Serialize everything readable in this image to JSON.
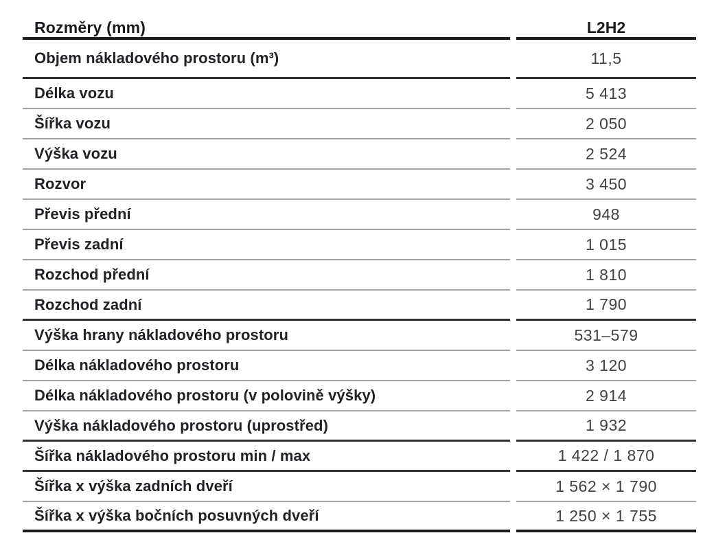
{
  "table": {
    "title": "Rozměry (mm)",
    "column_header": "L2H2",
    "rows": [
      {
        "label": "Objem nákladového prostoru (m³)",
        "value": "11,5",
        "sep": "dark",
        "tall": true
      },
      {
        "label": "Délka vozu",
        "value": "5 413",
        "sep": "thin",
        "tall": false
      },
      {
        "label": "Šířka vozu",
        "value": "2 050",
        "sep": "thin",
        "tall": false
      },
      {
        "label": "Výška vozu",
        "value": "2 524",
        "sep": "thin",
        "tall": false
      },
      {
        "label": "Rozvor",
        "value": "3 450",
        "sep": "thin",
        "tall": false
      },
      {
        "label": "Převis přední",
        "value": "948",
        "sep": "thin",
        "tall": false
      },
      {
        "label": "Převis zadní",
        "value": "1 015",
        "sep": "thin",
        "tall": false
      },
      {
        "label": "Rozchod přední",
        "value": "1 810",
        "sep": "thin",
        "tall": false
      },
      {
        "label": "Rozchod zadní",
        "value": "1 790",
        "sep": "dark",
        "tall": false
      },
      {
        "label": "Výška hrany nákladového prostoru",
        "value": "531–579",
        "sep": "thin",
        "tall": false
      },
      {
        "label": "Délka nákladového prostoru",
        "value": "3 120",
        "sep": "thin",
        "tall": false
      },
      {
        "label": "Délka nákladového prostoru (v polovině výšky)",
        "value": "2 914",
        "sep": "thin",
        "tall": false
      },
      {
        "label": "Výška nákladového prostoru (uprostřed)",
        "value": "1 932",
        "sep": "dark",
        "tall": false
      },
      {
        "label": "Šířka nákladového prostoru min / max",
        "value": "1 422 / 1 870",
        "sep": "dark",
        "tall": false
      },
      {
        "label": "Šířka x výška zadních dveří",
        "value": "1 562 × 1 790",
        "sep": "thin",
        "tall": false
      },
      {
        "label": "Šířka x výška bočních posuvných dveří",
        "value": "1 250 × 1 755",
        "sep": "black",
        "tall": false
      }
    ],
    "colors": {
      "thin_rule": "#a2a2a4",
      "dark_rule": "#312f33",
      "black_rule": "#1d1d1f",
      "label_text": "#232026",
      "value_text": "#434146"
    }
  }
}
